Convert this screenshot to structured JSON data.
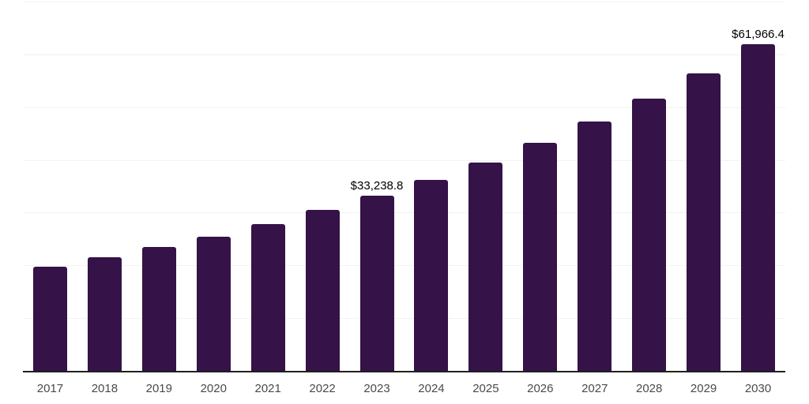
{
  "chart_data": {
    "type": "bar",
    "title": "",
    "xlabel": "",
    "ylabel": "",
    "categories": [
      "2017",
      "2018",
      "2019",
      "2020",
      "2021",
      "2022",
      "2023",
      "2024",
      "2025",
      "2026",
      "2027",
      "2028",
      "2029",
      "2030"
    ],
    "values": [
      19800,
      21600,
      23500,
      25450,
      27850,
      30500,
      33238.8,
      36150,
      39550,
      43250,
      47300,
      51600,
      56350,
      61966.4
    ],
    "value_labels": [
      {
        "category": "2023",
        "text": "$33,238.8"
      },
      {
        "category": "2030",
        "text": "$61,966.4"
      }
    ],
    "ylim": [
      0,
      70000
    ],
    "gridline_interval": 10000,
    "grid": "horizontal",
    "legend": "none",
    "y_axis_tick_labels": "none",
    "colors": {
      "bar": "#351247",
      "axis": "#1f1f1f",
      "gridline": "#f2f2f4",
      "tick_label": "#4a4a4a",
      "data_label": "#000000",
      "background": "#ffffff"
    }
  }
}
